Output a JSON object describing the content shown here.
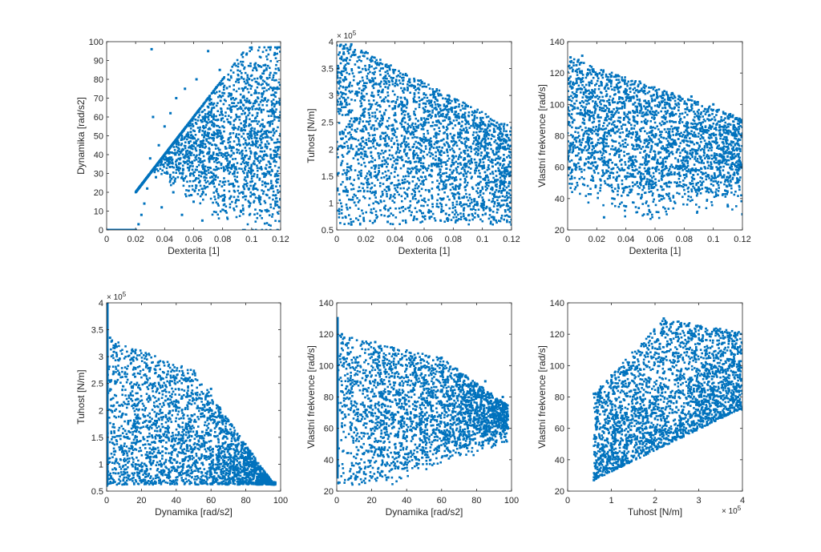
{
  "figure": {
    "background": "#ffffff",
    "marker_color": "#0072bd",
    "axis_color": "#262626"
  },
  "chart_data": [
    {
      "type": "scatter",
      "xlabel": "Dexterita [1]",
      "ylabel": "Dynamika [rad/s2]",
      "xlim": [
        0,
        0.12
      ],
      "ylim": [
        0,
        100
      ],
      "xticks": [
        0,
        0.02,
        0.04,
        0.06,
        0.08,
        0.1,
        0.12
      ],
      "xtick_labels": [
        "0",
        "0.02",
        "0.04",
        "0.06",
        "0.08",
        "0.1",
        "0.12"
      ],
      "yticks": [
        0,
        10,
        20,
        30,
        40,
        50,
        60,
        70,
        80,
        90,
        100
      ],
      "ytick_labels": [
        "0",
        "10",
        "20",
        "30",
        "40",
        "50",
        "60",
        "70",
        "80",
        "90",
        "100"
      ],
      "x_exponent": "",
      "y_exponent": "",
      "series": [
        {
          "values_note": "",
          "points": [
            [
              0.003,
              0
            ],
            [
              0.008,
              0
            ],
            [
              0.013,
              0
            ],
            [
              0.018,
              0
            ],
            [
              0.02,
              0
            ],
            [
              0.022,
              3
            ],
            [
              0.024,
              8
            ],
            [
              0.026,
              14
            ],
            [
              0.028,
              22
            ],
            [
              0.03,
              38
            ],
            [
              0.031,
              96
            ],
            [
              0.032,
              60
            ],
            [
              0.034,
              28
            ],
            [
              0.036,
              45
            ],
            [
              0.038,
              12
            ],
            [
              0.04,
              55
            ],
            [
              0.042,
              30
            ],
            [
              0.044,
              62
            ],
            [
              0.046,
              20
            ],
            [
              0.048,
              70
            ],
            [
              0.05,
              40
            ],
            [
              0.052,
              8
            ],
            [
              0.054,
              75
            ],
            [
              0.056,
              35
            ],
            [
              0.058,
              52
            ],
            [
              0.06,
              15
            ],
            [
              0.062,
              80
            ],
            [
              0.064,
              45
            ],
            [
              0.066,
              5
            ],
            [
              0.068,
              60
            ],
            [
              0.07,
              95
            ],
            [
              0.07,
              50
            ],
            [
              0.072,
              25
            ],
            [
              0.074,
              65
            ],
            [
              0.076,
              40
            ],
            [
              0.078,
              85
            ],
            [
              0.08,
              55
            ],
            [
              0.082,
              10
            ],
            [
              0.084,
              48
            ],
            [
              0.086,
              72
            ],
            [
              0.088,
              30
            ],
            [
              0.09,
              60
            ],
            [
              0.092,
              45
            ],
            [
              0.094,
              20
            ],
            [
              0.096,
              58
            ],
            [
              0.098,
              68
            ],
            [
              0.1,
              50
            ],
            [
              0.102,
              35
            ],
            [
              0.104,
              62
            ],
            [
              0.106,
              45
            ],
            [
              0.108,
              55
            ],
            [
              0.11,
              40
            ],
            [
              0.112,
              52
            ],
            [
              0.114,
              48
            ],
            [
              0.116,
              60
            ],
            [
              0.118,
              44
            ],
            [
              0.12,
              50
            ]
          ]
        }
      ]
    },
    {
      "type": "scatter",
      "xlabel": "Dexterita [1]",
      "ylabel": "Tuhost [N/m]",
      "xlim": [
        0,
        0.12
      ],
      "ylim": [
        0.5,
        4
      ],
      "xticks": [
        0,
        0.02,
        0.04,
        0.06,
        0.08,
        0.1,
        0.12
      ],
      "xtick_labels": [
        "0",
        "0.02",
        "0.04",
        "0.06",
        "0.08",
        "0.1",
        "0.12"
      ],
      "yticks": [
        0.5,
        1,
        1.5,
        2,
        2.5,
        3,
        3.5,
        4
      ],
      "ytick_labels": [
        "0.5",
        "1",
        "1.5",
        "2",
        "2.5",
        "3",
        "3.5",
        "4"
      ],
      "x_exponent": "",
      "y_exponent": "× 10^5",
      "series": [
        {
          "points": [
            [
              0.001,
              3.5
            ],
            [
              0.005,
              3.9
            ],
            [
              0.01,
              3.95
            ],
            [
              0.01,
              0.6
            ],
            [
              0.015,
              2.0
            ],
            [
              0.02,
              3.8
            ],
            [
              0.025,
              1.2
            ],
            [
              0.03,
              3.6
            ],
            [
              0.035,
              0.65
            ],
            [
              0.04,
              2.8
            ],
            [
              0.045,
              1.8
            ],
            [
              0.05,
              3.3
            ],
            [
              0.055,
              0.7
            ],
            [
              0.06,
              2.5
            ],
            [
              0.065,
              1.5
            ],
            [
              0.07,
              3.0
            ],
            [
              0.075,
              0.8
            ],
            [
              0.08,
              2.2
            ],
            [
              0.085,
              1.0
            ],
            [
              0.09,
              2.8
            ],
            [
              0.095,
              1.6
            ],
            [
              0.1,
              2.5
            ],
            [
              0.105,
              0.9
            ],
            [
              0.11,
              2.0
            ],
            [
              0.115,
              1.4
            ],
            [
              0.12,
              2.4
            ],
            [
              0.12,
              0.6
            ]
          ]
        }
      ]
    },
    {
      "type": "scatter",
      "xlabel": "Dexterita [1]",
      "ylabel": "Vlastní frekvence [rad/s]",
      "xlim": [
        0,
        0.12
      ],
      "ylim": [
        20,
        140
      ],
      "xticks": [
        0,
        0.02,
        0.04,
        0.06,
        0.08,
        0.1,
        0.12
      ],
      "xtick_labels": [
        "0",
        "0.02",
        "0.04",
        "0.06",
        "0.08",
        "0.1",
        "0.12"
      ],
      "yticks": [
        20,
        40,
        60,
        80,
        100,
        120,
        140
      ],
      "ytick_labels": [
        "20",
        "40",
        "60",
        "80",
        "100",
        "120",
        "140"
      ],
      "x_exponent": "",
      "y_exponent": "",
      "series": [
        {
          "points": [
            [
              0.002,
              130
            ],
            [
              0.006,
              125
            ],
            [
              0.01,
              131
            ],
            [
              0.015,
              90
            ],
            [
              0.02,
              60
            ],
            [
              0.025,
              28
            ],
            [
              0.03,
              115
            ],
            [
              0.035,
              70
            ],
            [
              0.04,
              35
            ],
            [
              0.045,
              100
            ],
            [
              0.05,
              50
            ],
            [
              0.055,
              30
            ],
            [
              0.06,
              95
            ],
            [
              0.065,
              60
            ],
            [
              0.07,
              40
            ],
            [
              0.075,
              85
            ],
            [
              0.08,
              55
            ],
            [
              0.085,
              105
            ],
            [
              0.09,
              45
            ],
            [
              0.095,
              75
            ],
            [
              0.1,
              100
            ],
            [
              0.105,
              60
            ],
            [
              0.11,
              35
            ],
            [
              0.115,
              80
            ],
            [
              0.12,
              90
            ],
            [
              0.12,
              30
            ]
          ]
        }
      ]
    },
    {
      "type": "scatter",
      "xlabel": "Dynamika [rad/s2]",
      "ylabel": "Tuhost [N/m]",
      "xlim": [
        0,
        100
      ],
      "ylim": [
        0.5,
        4
      ],
      "xticks": [
        0,
        20,
        40,
        60,
        80,
        100
      ],
      "xtick_labels": [
        "0",
        "20",
        "40",
        "60",
        "80",
        "100"
      ],
      "yticks": [
        0.5,
        1,
        1.5,
        2,
        2.5,
        3,
        3.5,
        4
      ],
      "ytick_labels": [
        "0.5",
        "1",
        "1.5",
        "2",
        "2.5",
        "3",
        "3.5",
        "4"
      ],
      "x_exponent": "",
      "y_exponent": "× 10^5",
      "series": [
        {
          "points": [
            [
              0,
              4.0
            ],
            [
              0,
              0.6
            ],
            [
              2,
              3.35
            ],
            [
              5,
              2.5
            ],
            [
              10,
              1.2
            ],
            [
              15,
              3.1
            ],
            [
              20,
              0.7
            ],
            [
              25,
              2.2
            ],
            [
              30,
              2.9
            ],
            [
              35,
              1.5
            ],
            [
              40,
              2.6
            ],
            [
              45,
              0.65
            ],
            [
              50,
              2.2
            ],
            [
              55,
              1.6
            ],
            [
              60,
              2.4
            ],
            [
              65,
              1.0
            ],
            [
              70,
              1.8
            ],
            [
              75,
              0.8
            ],
            [
              80,
              1.3
            ],
            [
              85,
              0.9
            ],
            [
              90,
              0.7
            ],
            [
              96,
              0.62
            ]
          ]
        }
      ]
    },
    {
      "type": "scatter",
      "xlabel": "Dynamika [rad/s2]",
      "ylabel": "Vlastní frekvence [rad/s]",
      "xlim": [
        0,
        100
      ],
      "ylim": [
        20,
        140
      ],
      "xticks": [
        0,
        20,
        40,
        60,
        80,
        100
      ],
      "xtick_labels": [
        "0",
        "20",
        "40",
        "60",
        "80",
        "100"
      ],
      "yticks": [
        20,
        40,
        60,
        80,
        100,
        120,
        140
      ],
      "ytick_labels": [
        "20",
        "40",
        "60",
        "80",
        "100",
        "120",
        "140"
      ],
      "x_exponent": "",
      "y_exponent": "",
      "series": [
        {
          "points": [
            [
              0,
              130
            ],
            [
              0,
              30
            ],
            [
              3,
              120
            ],
            [
              8,
              60
            ],
            [
              12,
              100
            ],
            [
              18,
              45
            ],
            [
              22,
              115
            ],
            [
              25,
              30
            ],
            [
              30,
              90
            ],
            [
              35,
              35
            ],
            [
              40,
              70
            ],
            [
              45,
              105
            ],
            [
              50,
              55
            ],
            [
              55,
              80
            ],
            [
              60,
              105
            ],
            [
              65,
              45
            ],
            [
              70,
              85
            ],
            [
              75,
              60
            ],
            [
              80,
              70
            ],
            [
              85,
              90
            ],
            [
              90,
              50
            ],
            [
              95,
              80
            ],
            [
              98,
              60
            ]
          ]
        }
      ]
    },
    {
      "type": "scatter",
      "xlabel": "Tuhost [N/m]",
      "ylabel": "Vlastní frekvence [rad/s]",
      "xlim": [
        0,
        4
      ],
      "ylim": [
        20,
        140
      ],
      "xticks": [
        0,
        1,
        2,
        3,
        4
      ],
      "xtick_labels": [
        "0",
        "1",
        "2",
        "3",
        "4"
      ],
      "yticks": [
        20,
        40,
        60,
        80,
        100,
        120,
        140
      ],
      "ytick_labels": [
        "20",
        "40",
        "60",
        "80",
        "100",
        "120",
        "140"
      ],
      "x_exponent": "× 10^5",
      "y_exponent": "",
      "series": [
        {
          "points": [
            [
              0.6,
              27
            ],
            [
              0.6,
              82
            ],
            [
              0.8,
              40
            ],
            [
              1.0,
              90
            ],
            [
              1.2,
              50
            ],
            [
              1.5,
              100
            ],
            [
              1.8,
              60
            ],
            [
              2.0,
              115
            ],
            [
              2.2,
              130
            ],
            [
              2.4,
              70
            ],
            [
              2.6,
              125
            ],
            [
              2.8,
              85
            ],
            [
              3.0,
              120
            ],
            [
              3.2,
              95
            ],
            [
              3.4,
              75
            ],
            [
              3.6,
              118
            ],
            [
              3.8,
              100
            ],
            [
              3.9,
              80
            ],
            [
              4.0,
              72
            ]
          ]
        }
      ]
    }
  ],
  "exponent": {
    "base": "× 10",
    "power": "5"
  }
}
